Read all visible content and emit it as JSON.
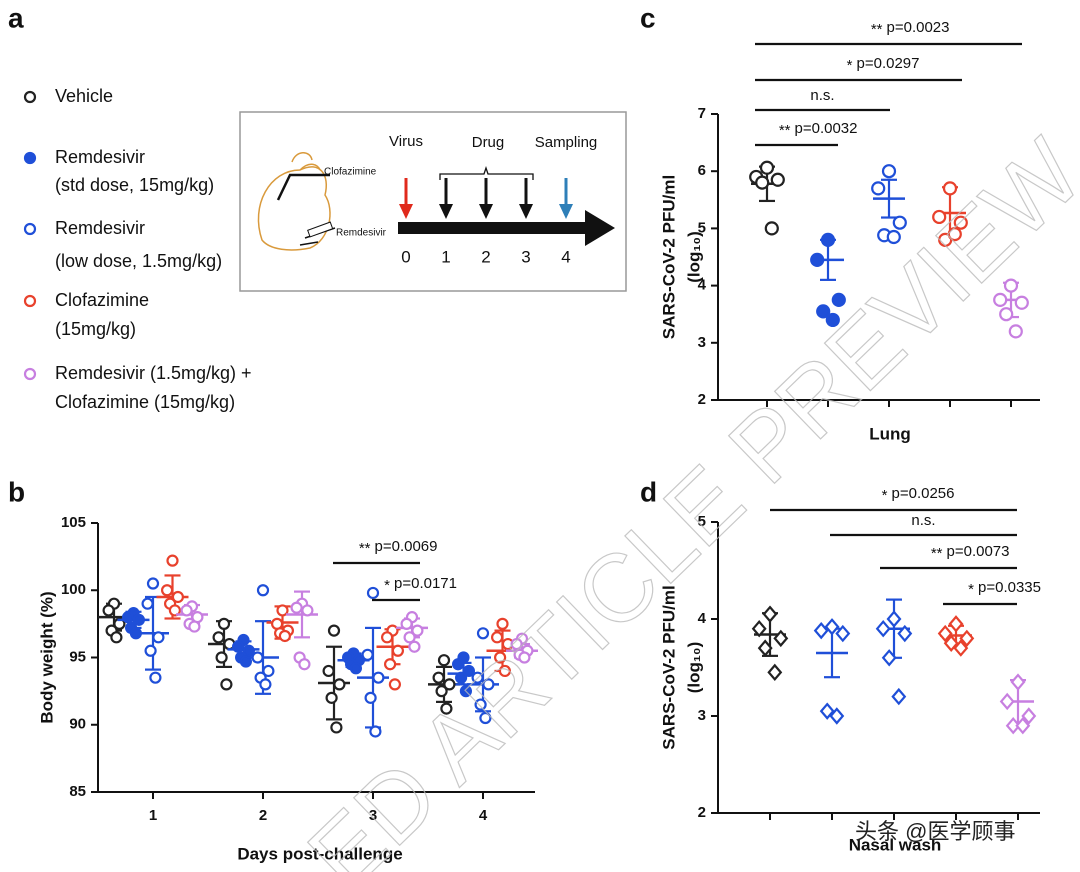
{
  "panel_labels": [
    "a",
    "b",
    "c",
    "d"
  ],
  "legend": [
    {
      "lines": [
        "Vehicle"
      ],
      "color": "#222222",
      "filled": false
    },
    {
      "lines": [
        "Remdesivir",
        "(std dose, 15mg/kg)"
      ],
      "color": "#1f4fd8",
      "filled": true
    },
    {
      "lines": [
        "Remdesivir",
        "(low dose, 1.5mg/kg)"
      ],
      "color": "#1f4fd8",
      "filled": false
    },
    {
      "lines": [
        "Clofazimine",
        "(15mg/kg)"
      ],
      "color": "#e8412c",
      "filled": false
    },
    {
      "lines": [
        "Remdesivir (1.5mg/kg) +",
        "Clofazimine (15mg/kg)"
      ],
      "color": "#c77fe0",
      "filled": false
    }
  ],
  "schematic": {
    "virus": "Virus",
    "drug": "Drug",
    "sampling": "Sampling",
    "clofazimine": "Clofazimine",
    "remdesivir": "Remdesivir",
    "days": [
      "0",
      "1",
      "2",
      "3",
      "4"
    ]
  },
  "watermarks": [
    "ED ARTICLE PREVIEW",
    "头条 @医学顾事"
  ],
  "chart_data": [
    {
      "type": "dot",
      "marker": "circle",
      "x_label": "Days post-challenge",
      "y_label": "Body weight (%)",
      "categories": [
        "1",
        "2",
        "3",
        "4"
      ],
      "ylim": [
        85,
        105
      ],
      "yticks": [
        85,
        90,
        95,
        100,
        105
      ],
      "series": [
        {
          "color": "#222222",
          "filled": false,
          "values": [
            [
              99,
              98.5,
              97.5,
              97,
              96.5
            ],
            [
              97.5,
              96.5,
              96,
              95,
              93
            ],
            [
              97,
              94,
              93,
              92,
              89.8
            ],
            [
              94.8,
              93.5,
              93,
              92.5,
              91.2
            ]
          ],
          "mean": [
            98,
            96,
            93.1,
            93
          ],
          "sd": [
            1,
            1.7,
            2.7,
            1.3
          ]
        },
        {
          "color": "#1f4fd8",
          "filled": true,
          "values": [
            [
              98.3,
              98,
              97.8,
              97.2,
              96.8
            ],
            [
              96.3,
              95.8,
              95.5,
              95,
              94.7
            ],
            [
              95.3,
              95,
              94.8,
              94.5,
              94.2
            ],
            [
              95,
              94.5,
              94,
              93.5,
              92.5
            ]
          ],
          "mean": [
            97.8,
            95.6,
            94.8,
            93.8
          ],
          "sd": [
            0.6,
            0.6,
            0.5,
            0.8
          ]
        },
        {
          "color": "#1f4fd8",
          "filled": false,
          "values": [
            [
              100.5,
              99,
              96.5,
              95.5,
              93.5
            ],
            [
              100,
              95,
              94,
              93.5,
              93
            ],
            [
              99.8,
              95.2,
              93.5,
              92,
              89.5
            ],
            [
              96.8,
              93.5,
              93,
              91.5,
              90.5
            ]
          ],
          "mean": [
            96.8,
            95,
            93.5,
            93
          ],
          "sd": [
            2.7,
            2.7,
            3.7,
            2
          ]
        },
        {
          "color": "#e8412c",
          "filled": false,
          "values": [
            [
              102.2,
              100,
              99.5,
              99,
              98.5
            ],
            [
              98.5,
              97.5,
              97,
              96.8,
              96.6
            ],
            [
              97,
              96.5,
              95.5,
              94.5,
              93
            ],
            [
              97.5,
              96.5,
              96,
              95,
              94
            ]
          ],
          "mean": [
            99.5,
            97.6,
            95.8,
            95.5
          ],
          "sd": [
            1.6,
            1.2,
            1.3,
            1.5
          ]
        },
        {
          "color": "#c77fe0",
          "filled": false,
          "values": [
            [
              98.8,
              98.5,
              98,
              97.5,
              97.3
            ],
            [
              99,
              98.7,
              98.5,
              95,
              94.5
            ],
            [
              98,
              97.5,
              97,
              96.5,
              95.8
            ],
            [
              96.4,
              96,
              95.5,
              95.2,
              95
            ]
          ],
          "mean": [
            98.2,
            98.2,
            97.2,
            95.5
          ],
          "sd": [
            0.7,
            1.7,
            0.7,
            0.5
          ]
        }
      ],
      "annotations": [
        {
          "stars": "**",
          "text": "p=0.0069"
        },
        {
          "stars": "*",
          "text": "p=0.0171"
        }
      ]
    },
    {
      "type": "dot",
      "marker": "circle",
      "x_label": "Lung",
      "y_label": [
        "SARS-CoV-2 PFU/ml",
        "(log₁₀)"
      ],
      "ylim": [
        2,
        7
      ],
      "yticks": [
        2,
        3,
        4,
        5,
        6,
        7
      ],
      "series": [
        {
          "color": "#222222",
          "filled": false,
          "values": [
            6.06,
            5.9,
            5.85,
            5.8,
            5.0
          ],
          "mean": 5.78,
          "sd": 0.3
        },
        {
          "color": "#1f4fd8",
          "filled": true,
          "values": [
            4.8,
            4.45,
            3.75,
            3.55,
            3.4
          ],
          "mean": 4.45,
          "sd": 0.35
        },
        {
          "color": "#1f4fd8",
          "filled": false,
          "values": [
            6.0,
            5.7,
            5.1,
            4.88,
            4.85
          ],
          "mean": 5.52,
          "sd": 0.33
        },
        {
          "color": "#e8412c",
          "filled": false,
          "values": [
            5.7,
            5.2,
            5.1,
            4.8,
            4.9
          ],
          "mean": 5.27,
          "sd": 0.45
        },
        {
          "color": "#c77fe0",
          "filled": false,
          "values": [
            4.0,
            3.75,
            3.7,
            3.5,
            3.2
          ],
          "mean": 3.75,
          "sd": 0.3
        }
      ],
      "annotations": [
        {
          "stars": "**",
          "text": "p=0.0032"
        },
        {
          "text": "n.s."
        },
        {
          "stars": "*",
          "text": "p=0.0297"
        },
        {
          "stars": "**",
          "text": "p=0.0023"
        }
      ]
    },
    {
      "type": "dot",
      "marker": "diamond",
      "x_label": "Nasal wash",
      "y_label": [
        "SARS-CoV-2 PFU/ml",
        "(log₁₀)"
      ],
      "ylim": [
        2,
        5
      ],
      "yticks": [
        2,
        3,
        4,
        5
      ],
      "series": [
        {
          "color": "#222222",
          "filled": false,
          "values": [
            4.05,
            3.9,
            3.8,
            3.7,
            3.45
          ],
          "mean": 3.84,
          "sd": 0.22
        },
        {
          "color": "#1f4fd8",
          "filled": false,
          "values": [
            3.92,
            3.88,
            3.85,
            3.05,
            3.0
          ],
          "mean": 3.65,
          "sd": 0.25
        },
        {
          "color": "#1f4fd8",
          "filled": false,
          "values": [
            4.0,
            3.9,
            3.85,
            3.6,
            3.2
          ],
          "mean": 3.9,
          "sd": 0.3
        },
        {
          "color": "#e8412c",
          "filled": false,
          "values": [
            3.95,
            3.85,
            3.8,
            3.75,
            3.7
          ],
          "mean": 3.83,
          "sd": 0.1
        },
        {
          "color": "#c77fe0",
          "filled": false,
          "values": [
            3.35,
            3.15,
            3.0,
            2.9,
            2.9
          ],
          "mean": 3.15,
          "sd": 0.22
        }
      ],
      "annotations": [
        {
          "stars": "*",
          "text": "p=0.0256"
        },
        {
          "text": "n.s."
        },
        {
          "stars": "**",
          "text": "p=0.0073"
        },
        {
          "stars": "*",
          "text": "p=0.0335"
        }
      ]
    }
  ]
}
